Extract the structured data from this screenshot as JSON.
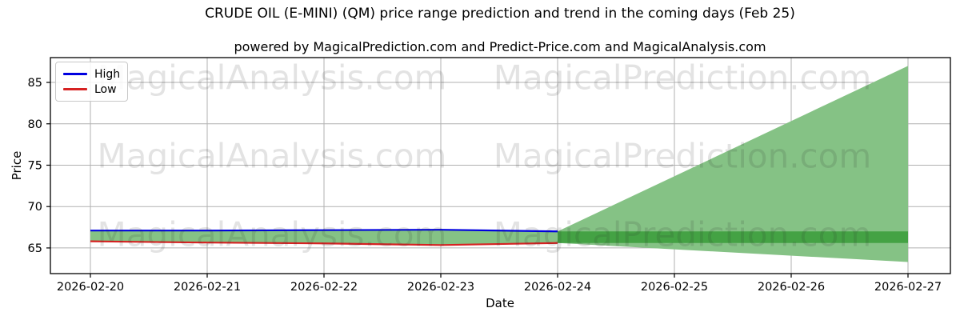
{
  "header": {
    "title": "CRUDE OIL (E-MINI) (QM) price range prediction and trend in the coming days (Feb 25)",
    "subtitle": "powered by MagicalPrediction.com and Predict-Price.com and MagicalAnalysis.com"
  },
  "legend": {
    "items": [
      {
        "label": "High",
        "color": "#0000e0"
      },
      {
        "label": "Low",
        "color": "#d62222"
      }
    ]
  },
  "watermarks": {
    "left": "MagicalAnalysis.com",
    "right": "MagicalPrediction.com"
  },
  "chart_data": {
    "type": "line",
    "title": "CRUDE OIL (E-MINI) (QM) price range prediction and trend in the coming days (Feb 25)",
    "subtitle": "powered by MagicalPrediction.com and Predict-Price.com and MagicalAnalysis.com",
    "xlabel": "Date",
    "ylabel": "Price",
    "x": [
      "2026-02-20",
      "2026-02-21",
      "2026-02-22",
      "2026-02-23",
      "2026-02-24",
      "2026-02-25",
      "2026-02-26",
      "2026-02-27"
    ],
    "yticks": [
      65,
      70,
      75,
      80,
      85
    ],
    "ylim": [
      61.9,
      88.0
    ],
    "grid": true,
    "grid_color": "#b0b0b0",
    "legend_position": "upper left",
    "series": [
      {
        "name": "High",
        "color": "#0000e0",
        "dates": [
          "2026-02-20",
          "2026-02-21",
          "2026-02-22",
          "2026-02-23",
          "2026-02-24"
        ],
        "values": [
          67.1,
          67.1,
          67.15,
          67.2,
          67.0
        ]
      },
      {
        "name": "Low",
        "color": "#d62222",
        "dates": [
          "2026-02-20",
          "2026-02-21",
          "2026-02-22",
          "2026-02-23",
          "2026-02-24"
        ],
        "values": [
          65.8,
          65.65,
          65.55,
          65.35,
          65.6
        ]
      }
    ],
    "historical_fill_color": "#85c285",
    "prediction": {
      "dates": [
        "2026-02-24",
        "2026-02-27"
      ],
      "fan_high": [
        67.0,
        87.0
      ],
      "fan_low": [
        65.6,
        63.3
      ],
      "band_high": 67.0,
      "band_low": 65.6,
      "fan_color": "#85c285",
      "band_color": "#44a244"
    }
  }
}
